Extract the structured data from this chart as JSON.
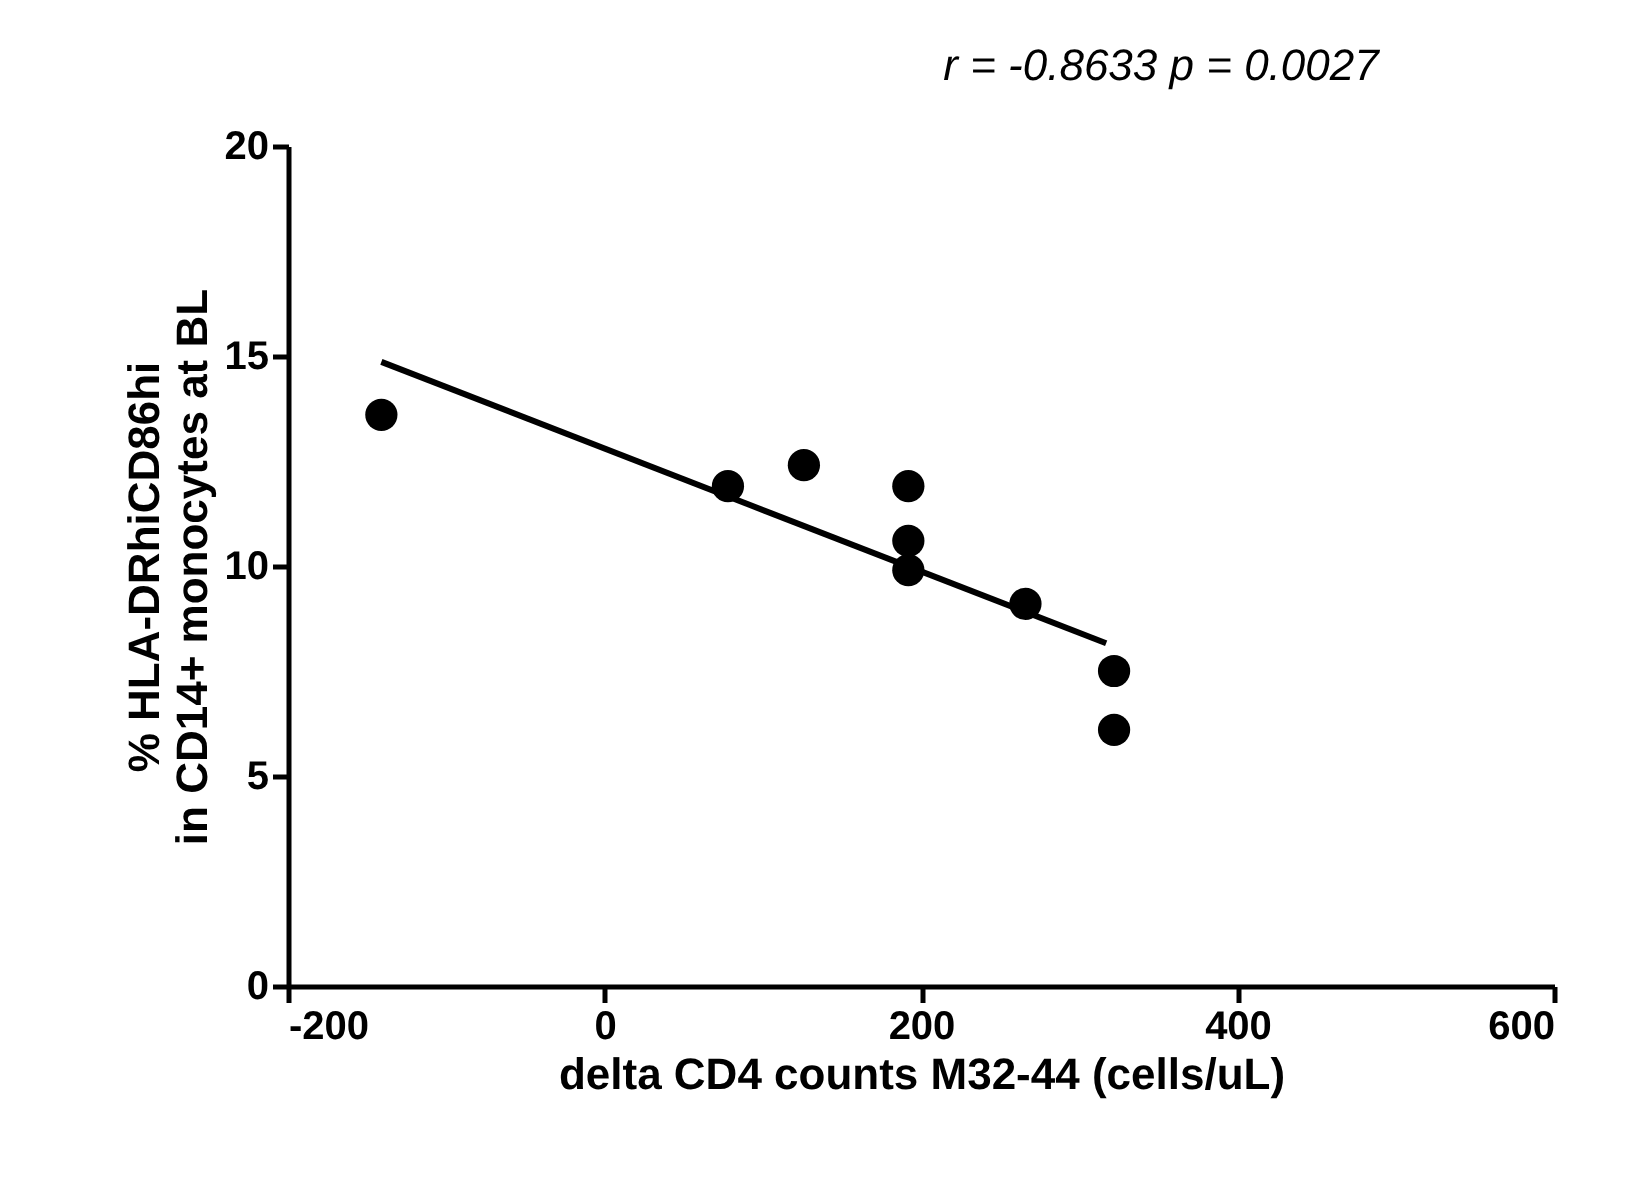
{
  "chart_data": {
    "type": "scatter",
    "title": "r = -0.8633 p = 0.0027",
    "xlabel": "delta CD4 counts M32-44 (cells/uL)",
    "ylabel": "% HLA-DRhiCD86hi\nin CD14+ monocytes at BL",
    "xlim": [
      -200,
      600
    ],
    "xticks": [
      -200,
      0,
      200,
      400,
      600
    ],
    "ylim": [
      0,
      20
    ],
    "yticks": [
      0,
      5,
      10,
      15,
      20
    ],
    "grid": false,
    "series": [
      {
        "color": "#000000",
        "marker": "circle",
        "x": [
          -141,
          78,
          126,
          192,
          192,
          192,
          266,
          322,
          322
        ],
        "values": [
          13.6,
          11.9,
          12.4,
          11.9,
          10.6,
          9.9,
          9.1,
          7.5,
          6.1
        ]
      },
      {
        "type": "line",
        "color": "#000000",
        "line_style": "solid",
        "x": [
          -141,
          317
        ],
        "values": [
          14.86,
          8.16
        ]
      }
    ]
  }
}
